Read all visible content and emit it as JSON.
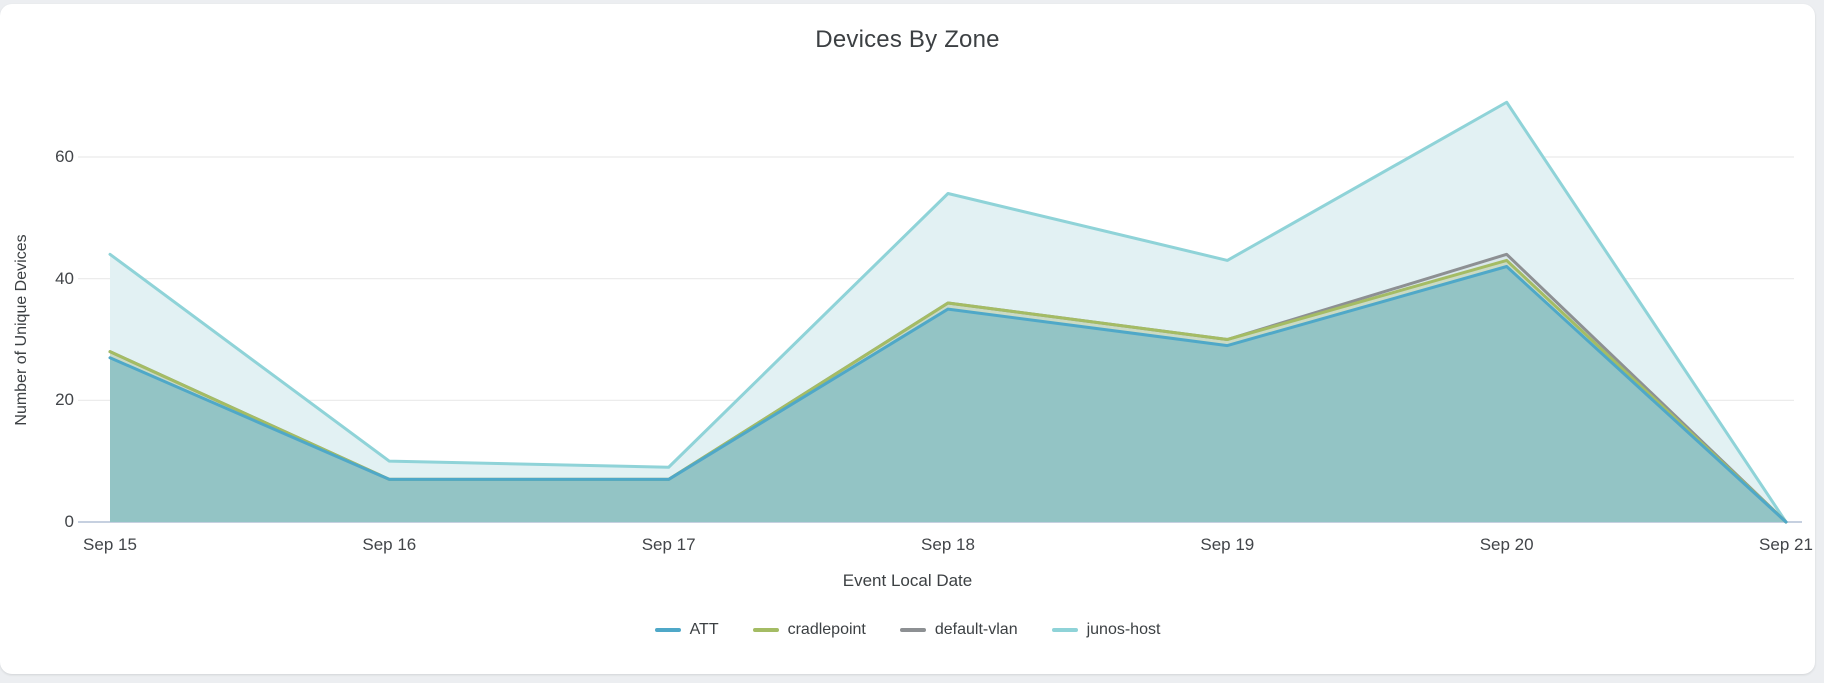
{
  "page": {
    "background_color": "#ECEEF1",
    "card_background_color": "#FFFFFF"
  },
  "chart_data": {
    "type": "area",
    "title": "Devices By Zone",
    "xlabel": "Event Local Date",
    "ylabel": "Number of Unique Devices",
    "categories": [
      "Sep 15",
      "Sep 16",
      "Sep 17",
      "Sep 18",
      "Sep 19",
      "Sep 20",
      "Sep 21"
    ],
    "series": [
      {
        "name": "ATT",
        "color": "#4FA8C8",
        "fill": "rgba(79,168,200,0.45)",
        "values": [
          27,
          7,
          7,
          35,
          29,
          42,
          0
        ]
      },
      {
        "name": "cradlepoint",
        "color": "#A4BC64",
        "fill": "rgba(164,188,100,0.28)",
        "values": [
          28,
          7,
          7,
          36,
          30,
          43,
          0
        ]
      },
      {
        "name": "default-vlan",
        "color": "#8D9093",
        "fill": "rgba(141,144,147,0.10)",
        "values": [
          28,
          7,
          7,
          36,
          30,
          44,
          0
        ]
      },
      {
        "name": "junos-host",
        "color": "#8FD3D8",
        "fill": "#E2F1F3",
        "values": [
          44,
          10,
          9,
          54,
          43,
          69,
          0
        ]
      }
    ],
    "yticks": [
      0,
      20,
      40,
      60
    ],
    "ylim": [
      0,
      73
    ],
    "grid": true,
    "grid_color": "#E9E9E9",
    "axis_line_color": "#C6D0E0",
    "text_color": "#3C4043",
    "legend_position": "bottom"
  }
}
